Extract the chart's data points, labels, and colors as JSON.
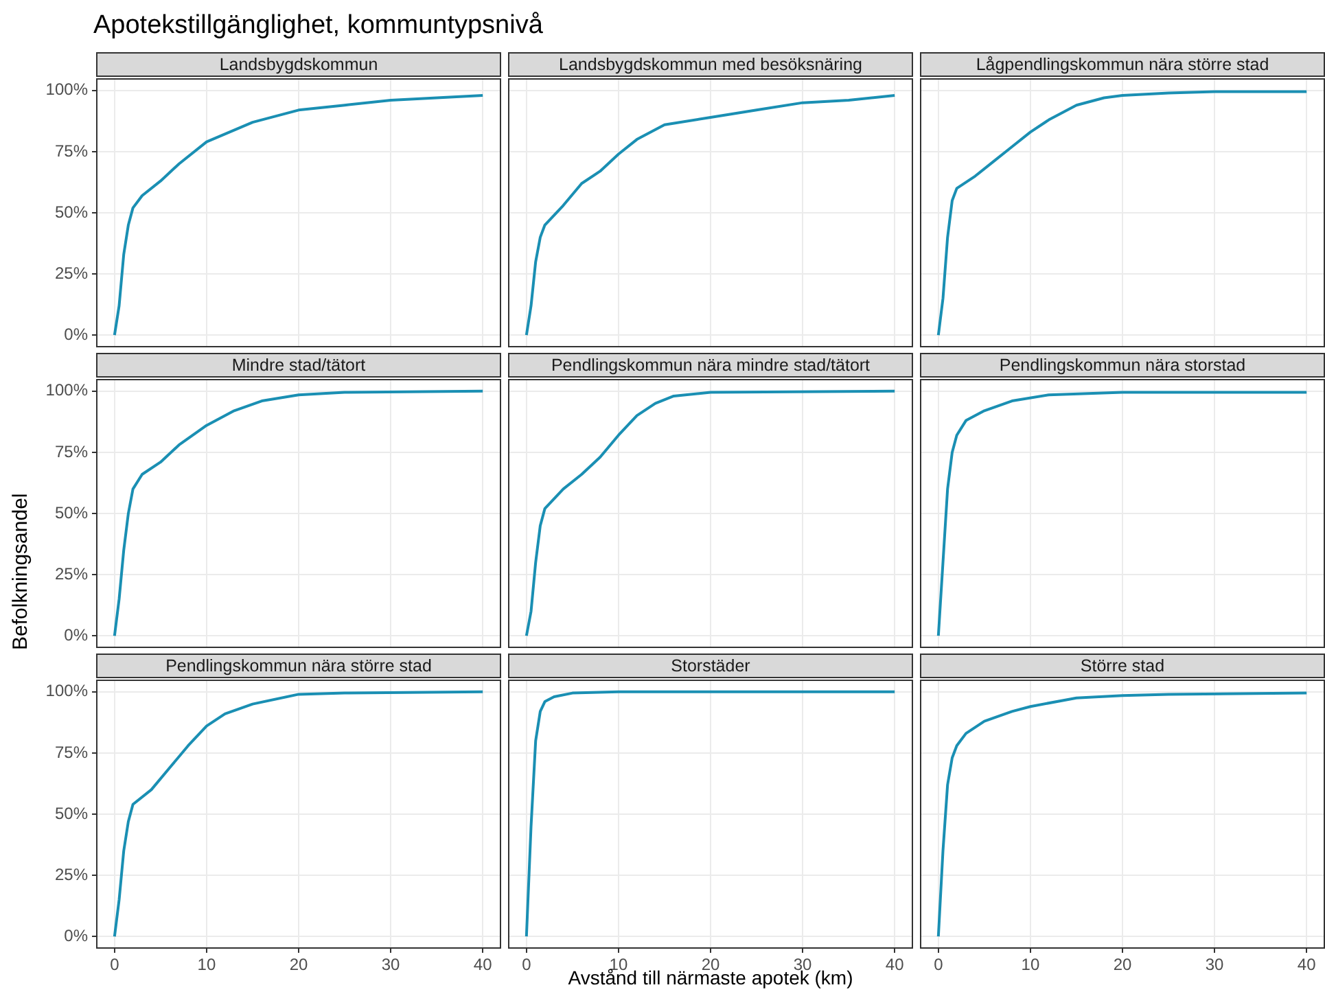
{
  "chart_data": [
    {
      "type": "line",
      "title": "Apotekstillgänglighet, kommuntypsnivå",
      "subtitle": "Landsbygdskommun",
      "tick_labels": "y",
      "grid": true,
      "xlim": [
        -2,
        42
      ],
      "xticks": [
        0,
        10,
        20,
        30,
        40
      ],
      "ylim": [
        -5,
        105
      ],
      "yticks": [
        {
          "value": 0,
          "label": "0%"
        },
        {
          "value": 25,
          "label": "25%"
        },
        {
          "value": 50,
          "label": "50%"
        },
        {
          "value": 75,
          "label": "75%"
        },
        {
          "value": 100,
          "label": "100%"
        }
      ],
      "x": [
        0,
        0.5,
        1,
        1.5,
        2,
        3,
        5,
        7,
        10,
        15,
        20,
        25,
        30,
        35,
        40
      ],
      "series": [
        {
          "color": "#1a8fb3",
          "values": [
            0,
            12,
            33,
            45,
            52,
            57,
            63,
            70,
            79,
            87,
            92,
            94,
            96,
            97,
            98
          ]
        }
      ]
    },
    {
      "type": "line",
      "subtitle": "Landsbygdskommun med besöksnäring",
      "tick_labels": false,
      "grid": true,
      "xlim": [
        -2,
        42
      ],
      "xticks": [
        0,
        10,
        20,
        30,
        40
      ],
      "ylim": [
        -5,
        105
      ],
      "yticks": [
        0,
        25,
        50,
        75,
        100
      ],
      "x": [
        0,
        0.5,
        1,
        1.5,
        2,
        4,
        6,
        8,
        10,
        12,
        15,
        20,
        25,
        30,
        35,
        40
      ],
      "series": [
        {
          "color": "#1a8fb3",
          "values": [
            0,
            12,
            30,
            40,
            45,
            53,
            62,
            67,
            74,
            80,
            86,
            89,
            92,
            95,
            96,
            98
          ]
        }
      ]
    },
    {
      "type": "line",
      "subtitle": "Lågpendlingskommun nära större stad",
      "tick_labels": false,
      "grid": true,
      "xlim": [
        -2,
        42
      ],
      "xticks": [
        0,
        10,
        20,
        30,
        40
      ],
      "ylim": [
        -5,
        105
      ],
      "yticks": [
        0,
        25,
        50,
        75,
        100
      ],
      "x": [
        0,
        0.5,
        1,
        1.5,
        2,
        4,
        6,
        8,
        10,
        12,
        15,
        18,
        20,
        25,
        30,
        40
      ],
      "series": [
        {
          "color": "#1a8fb3",
          "values": [
            0,
            15,
            40,
            55,
            60,
            65,
            71,
            77,
            83,
            88,
            94,
            97,
            98,
            99,
            99.5,
            99.5
          ]
        }
      ]
    },
    {
      "type": "line",
      "subtitle": "Mindre stad/tätort",
      "ylabel": "Befolkningsandel",
      "tick_labels": "y",
      "grid": true,
      "xlim": [
        -2,
        42
      ],
      "xticks": [
        0,
        10,
        20,
        30,
        40
      ],
      "ylim": [
        -5,
        105
      ],
      "yticks": [
        {
          "value": 0,
          "label": "0%"
        },
        {
          "value": 25,
          "label": "25%"
        },
        {
          "value": 50,
          "label": "50%"
        },
        {
          "value": 75,
          "label": "75%"
        },
        {
          "value": 100,
          "label": "100%"
        }
      ],
      "x": [
        0,
        0.5,
        1,
        1.5,
        2,
        3,
        5,
        7,
        10,
        13,
        16,
        20,
        25,
        40
      ],
      "series": [
        {
          "color": "#1a8fb3",
          "values": [
            0,
            15,
            35,
            50,
            60,
            66,
            71,
            78,
            86,
            92,
            96,
            98.5,
            99.5,
            100
          ]
        }
      ]
    },
    {
      "type": "line",
      "subtitle": "Pendlingskommun nära mindre stad/tätort",
      "tick_labels": false,
      "grid": true,
      "xlim": [
        -2,
        42
      ],
      "xticks": [
        0,
        10,
        20,
        30,
        40
      ],
      "ylim": [
        -5,
        105
      ],
      "yticks": [
        0,
        25,
        50,
        75,
        100
      ],
      "x": [
        0,
        0.5,
        1,
        1.5,
        2,
        4,
        6,
        8,
        10,
        12,
        14,
        16,
        20,
        40
      ],
      "series": [
        {
          "color": "#1a8fb3",
          "values": [
            0,
            10,
            30,
            45,
            52,
            60,
            66,
            73,
            82,
            90,
            95,
            98,
            99.5,
            100
          ]
        }
      ]
    },
    {
      "type": "line",
      "subtitle": "Pendlingskommun nära storstad",
      "tick_labels": false,
      "grid": true,
      "xlim": [
        -2,
        42
      ],
      "xticks": [
        0,
        10,
        20,
        30,
        40
      ],
      "ylim": [
        -5,
        105
      ],
      "yticks": [
        0,
        25,
        50,
        75,
        100
      ],
      "x": [
        0,
        0.5,
        1,
        1.5,
        2,
        3,
        5,
        8,
        12,
        20,
        40
      ],
      "series": [
        {
          "color": "#1a8fb3",
          "values": [
            0,
            30,
            60,
            75,
            82,
            88,
            92,
            96,
            98.5,
            99.5,
            99.5
          ]
        }
      ]
    },
    {
      "type": "line",
      "subtitle": "Pendlingskommun nära större stad",
      "grid": true,
      "xlim": [
        -2,
        42
      ],
      "xticks": [
        0,
        10,
        20,
        30,
        40
      ],
      "ylim": [
        -5,
        105
      ],
      "yticks": [
        {
          "value": 0,
          "label": "0%"
        },
        {
          "value": 25,
          "label": "25%"
        },
        {
          "value": 50,
          "label": "50%"
        },
        {
          "value": 75,
          "label": "75%"
        },
        {
          "value": 100,
          "label": "100%"
        }
      ],
      "x": [
        0,
        0.5,
        1,
        1.5,
        2,
        4,
        6,
        8,
        10,
        12,
        15,
        20,
        25,
        40
      ],
      "series": [
        {
          "color": "#1a8fb3",
          "values": [
            0,
            15,
            35,
            47,
            54,
            60,
            69,
            78,
            86,
            91,
            95,
            99,
            99.5,
            100
          ]
        }
      ]
    },
    {
      "type": "line",
      "subtitle": "Storstäder",
      "xlabel": "Avstånd till närmaste apotek (km)",
      "tick_labels": "x",
      "grid": true,
      "xlim": [
        -2,
        42
      ],
      "xticks": [
        0,
        10,
        20,
        30,
        40
      ],
      "ylim": [
        -5,
        105
      ],
      "yticks": [
        0,
        25,
        50,
        75,
        100
      ],
      "x": [
        0,
        0.5,
        1,
        1.5,
        2,
        3,
        5,
        10,
        40
      ],
      "series": [
        {
          "color": "#1a8fb3",
          "values": [
            0,
            45,
            80,
            92,
            96,
            98,
            99.5,
            100,
            100
          ]
        }
      ]
    },
    {
      "type": "line",
      "subtitle": "Större stad",
      "tick_labels": "x",
      "grid": true,
      "xlim": [
        -2,
        42
      ],
      "xticks": [
        0,
        10,
        20,
        30,
        40
      ],
      "ylim": [
        -5,
        105
      ],
      "yticks": [
        0,
        25,
        50,
        75,
        100
      ],
      "x": [
        0,
        0.5,
        1,
        1.5,
        2,
        3,
        5,
        8,
        10,
        15,
        20,
        25,
        40
      ],
      "series": [
        {
          "color": "#1a8fb3",
          "values": [
            0,
            35,
            62,
            73,
            78,
            83,
            88,
            92,
            94,
            97.5,
            98.5,
            99,
            99.5
          ]
        }
      ]
    }
  ]
}
